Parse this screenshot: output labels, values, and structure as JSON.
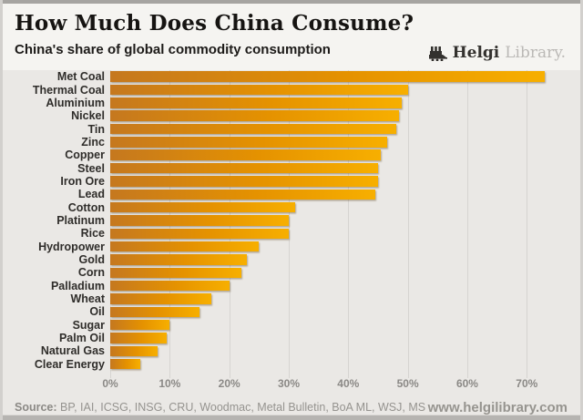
{
  "header": {
    "title": "How Much Does China Consume?",
    "subtitle": "China's share of global commodity consumption",
    "logo": {
      "name": "Helgi",
      "suffix": "Library."
    }
  },
  "chart_data": {
    "type": "bar",
    "orientation": "horizontal",
    "title": "How Much Does China Consume?",
    "subtitle": "China's share of global commodity consumption",
    "categories": [
      "Met Coal",
      "Thermal Coal",
      "Aluminium",
      "Nickel",
      "Tin",
      "Zinc",
      "Copper",
      "Steel",
      "Iron Ore",
      "Lead",
      "Cotton",
      "Platinum",
      "Rice",
      "Hydropower",
      "Gold",
      "Corn",
      "Palladium",
      "Wheat",
      "Oil",
      "Sugar",
      "Palm Oil",
      "Natural Gas",
      "Clear Energy"
    ],
    "values": [
      73,
      50,
      49,
      48.5,
      48,
      46.5,
      45.5,
      45,
      45,
      44.5,
      31,
      30,
      30,
      25,
      23,
      22,
      20,
      17,
      15,
      10,
      9.5,
      8,
      5
    ],
    "unit": "%",
    "xlabel": "",
    "ylabel": "",
    "xlim": [
      0,
      75
    ],
    "x_ticks": [
      "0%",
      "10%",
      "20%",
      "30%",
      "40%",
      "50%",
      "60%",
      "70%"
    ],
    "x_tick_values": [
      0,
      10,
      20,
      30,
      40,
      50,
      60,
      70
    ],
    "grid": "vertical",
    "legend": "none",
    "bar_color_start": "#c5781f",
    "bar_color_end": "#f7af00",
    "plot_background": "#eae8e5",
    "header_background": "#f5f4f1"
  },
  "footer": {
    "source_label": "Source:",
    "source_text": " BP, IAI, ICSG, INSG, CRU, Woodmac, Metal Bulletin, BoA ML, WSJ, MS",
    "website": "www.helgilibrary.com"
  }
}
